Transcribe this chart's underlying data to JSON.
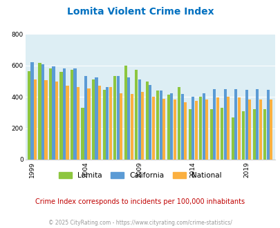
{
  "title": "Lomita Violent Crime Index",
  "subtitle": "Crime Index corresponds to incidents per 100,000 inhabitants",
  "footer": "© 2025 CityRating.com - https://www.cityrating.com/crime-statistics/",
  "years": [
    1999,
    2000,
    2001,
    2002,
    2003,
    2004,
    2005,
    2006,
    2007,
    2008,
    2009,
    2010,
    2011,
    2012,
    2013,
    2014,
    2015,
    2016,
    2017,
    2018,
    2019,
    2020,
    2021
  ],
  "lomita": [
    565,
    615,
    580,
    560,
    575,
    330,
    510,
    445,
    535,
    600,
    575,
    500,
    440,
    415,
    465,
    320,
    400,
    320,
    330,
    270,
    310,
    320,
    320
  ],
  "california": [
    620,
    610,
    595,
    580,
    580,
    535,
    525,
    465,
    535,
    525,
    510,
    475,
    440,
    425,
    420,
    400,
    425,
    450,
    450,
    450,
    445,
    450,
    445
  ],
  "national": [
    510,
    505,
    500,
    470,
    465,
    455,
    470,
    465,
    425,
    420,
    430,
    400,
    390,
    385,
    365,
    375,
    385,
    395,
    400,
    395,
    385,
    385,
    385
  ],
  "bar_colors": {
    "lomita": "#8dc63f",
    "california": "#5b9bd5",
    "national": "#fbb040"
  },
  "bg_color": "#ddeef4",
  "title_color": "#0070c0",
  "subtitle_color": "#c00000",
  "footer_color": "#999999",
  "ylim": [
    0,
    800
  ],
  "yticks": [
    0,
    200,
    400,
    600,
    800
  ],
  "xlabel_years": [
    1999,
    2004,
    2009,
    2014,
    2019
  ]
}
